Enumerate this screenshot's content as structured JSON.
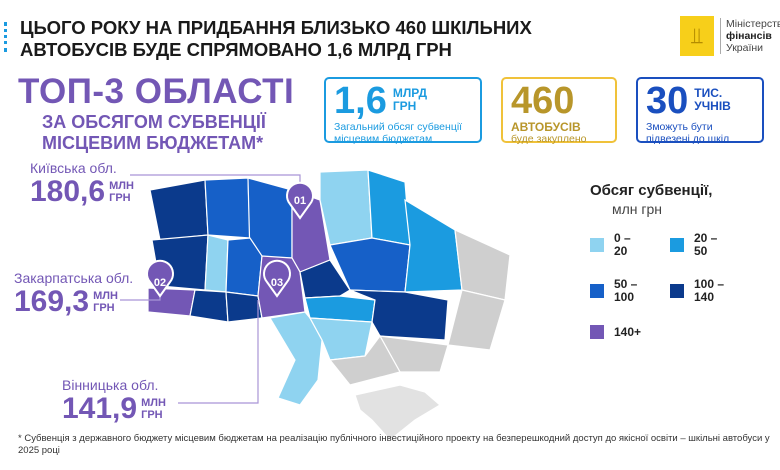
{
  "header": {
    "title_line1": "ЦЬОГО РОКУ НА ПРИДБАННЯ БЛИЗЬКО 460 ШКІЛЬНИХ",
    "title_line2": "АВТОБУСІВ БУДЕ СПРЯМОВАНО 1,6 МЛРД ГРН"
  },
  "logo": {
    "line1": "Міністерство",
    "line2": "фінансів",
    "line3": "України",
    "icon": "trident-icon"
  },
  "top3": {
    "title": "ТОП-3 ОБЛАСТІ",
    "sub1": "ЗА ОБСЯГОМ СУБВЕНЦІЇ",
    "sub2": "МІСЦЕВИМ БЮДЖЕТАМ*"
  },
  "stats": [
    {
      "value": "1,6",
      "unit1": "МЛРД",
      "unit2": "ГРН",
      "desc1": "Загальний обсяг субвенції",
      "desc2": "місцевим бюджетам",
      "color": "#1b9be0"
    },
    {
      "value": "460",
      "unit1": "",
      "unit2": "",
      "desc1": "АВТОБУСІВ",
      "desc2": "буде закуплено",
      "color": "#b8962a"
    },
    {
      "value": "30",
      "unit1": "ТИС.",
      "unit2": "УЧНІВ",
      "desc1": "Зможуть бути",
      "desc2": "підвезені до шкіл",
      "color": "#1a4fbf"
    }
  ],
  "regions": [
    {
      "rank": "01",
      "name": "Київська обл.",
      "value": "180,6",
      "unit1": "МЛН",
      "unit2": "ГРН"
    },
    {
      "rank": "02",
      "name": "Закарпатська обл.",
      "value": "169,3",
      "unit1": "МЛН",
      "unit2": "ГРН"
    },
    {
      "rank": "03",
      "name": "Вінницька обл.",
      "value": "141,9",
      "unit1": "МЛН",
      "unit2": "ГРН"
    }
  ],
  "legend": {
    "title": "Обсяг субвенції,",
    "subtitle": "млн грн",
    "items": [
      {
        "label1": "0 –",
        "label2": "20",
        "color": "#8fd3f0"
      },
      {
        "label1": "20 –",
        "label2": "50",
        "color": "#1b9be0"
      },
      {
        "label1": "50 –",
        "label2": "100",
        "color": "#1660c8"
      },
      {
        "label1": "100 –",
        "label2": "140",
        "color": "#0b3a8c"
      },
      {
        "label1": "140+",
        "label2": "",
        "color": "#7357b5"
      }
    ]
  },
  "footnote": "* Субвенція з державного бюджету місцевим бюджетам на реалізацію публічного інвестиційного проекту на безперешкодний доступ до якісної освіти – шкільні автобуси у 2025 році"
}
